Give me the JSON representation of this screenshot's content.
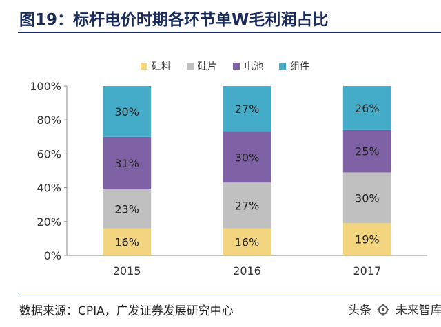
{
  "figure": {
    "title": "图19：标杆电价时期各环节单W毛利润占比",
    "source": "数据来源：CPIA，广发证券发展研究中心",
    "watermark_left": "头条",
    "watermark_right": "未来智库"
  },
  "chart_data": {
    "type": "bar",
    "stacked": true,
    "title": "标杆电价时期各环节单W毛利润占比",
    "categories": [
      "2015",
      "2016",
      "2017"
    ],
    "series": [
      {
        "name": "硅料",
        "color": "#f2d57e",
        "values": [
          16,
          16,
          19
        ],
        "labels": [
          "16%",
          "16%",
          "19%"
        ]
      },
      {
        "name": "硅片",
        "color": "#c0c0c0",
        "values": [
          23,
          27,
          30
        ],
        "labels": [
          "23%",
          "27%",
          "30%"
        ]
      },
      {
        "name": "电池",
        "color": "#7f61a6",
        "values": [
          31,
          30,
          25
        ],
        "labels": [
          "31%",
          "30%",
          "25%"
        ]
      },
      {
        "name": "组件",
        "color": "#44acc8",
        "values": [
          30,
          27,
          26
        ],
        "labels": [
          "30%",
          "27%",
          "26%"
        ]
      }
    ],
    "ylim": [
      0,
      100
    ],
    "yticks": [
      "0%",
      "20%",
      "40%",
      "60%",
      "80%",
      "100%"
    ],
    "xlabel": "",
    "ylabel": "",
    "legend_position": "top-center",
    "grid": false
  }
}
